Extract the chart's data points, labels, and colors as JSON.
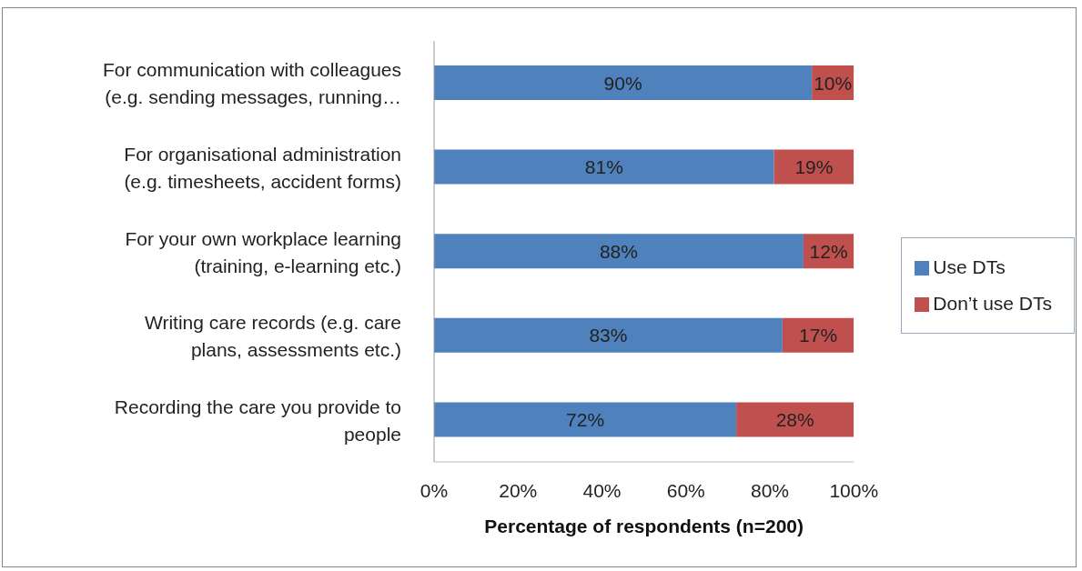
{
  "chart_data": {
    "type": "bar",
    "orientation": "horizontal",
    "stacked": true,
    "xlabel": "Percentage of respondents (n=200)",
    "categories": [
      "For communication with colleagues (e.g. sending messages, running…",
      "For organisational administration (e.g. timesheets, accident forms)",
      "For your own workplace learning (training, e-learning etc.)",
      "Writing care records (e.g. care plans, assessments etc.)",
      "Recording the care you provide to people"
    ],
    "series": [
      {
        "name": "Use DTs",
        "color": "#4f81bd",
        "values": [
          90,
          81,
          88,
          83,
          72
        ],
        "value_labels": [
          "90%",
          "81%",
          "88%",
          "83%",
          "72%"
        ]
      },
      {
        "name": "Don’t use DTs",
        "color": "#c0504d",
        "values": [
          10,
          19,
          12,
          17,
          28
        ],
        "value_labels": [
          "10%",
          "19%",
          "12%",
          "17%",
          "28%"
        ]
      }
    ],
    "xlim": [
      0,
      100
    ],
    "xticks": [
      {
        "value": 0,
        "label": "0%"
      },
      {
        "value": 20,
        "label": "20%"
      },
      {
        "value": 40,
        "label": "40%"
      },
      {
        "value": 60,
        "label": "60%"
      },
      {
        "value": 80,
        "label": "80%"
      },
      {
        "value": 100,
        "label": "100%"
      }
    ],
    "legend": "right",
    "grid": false
  }
}
